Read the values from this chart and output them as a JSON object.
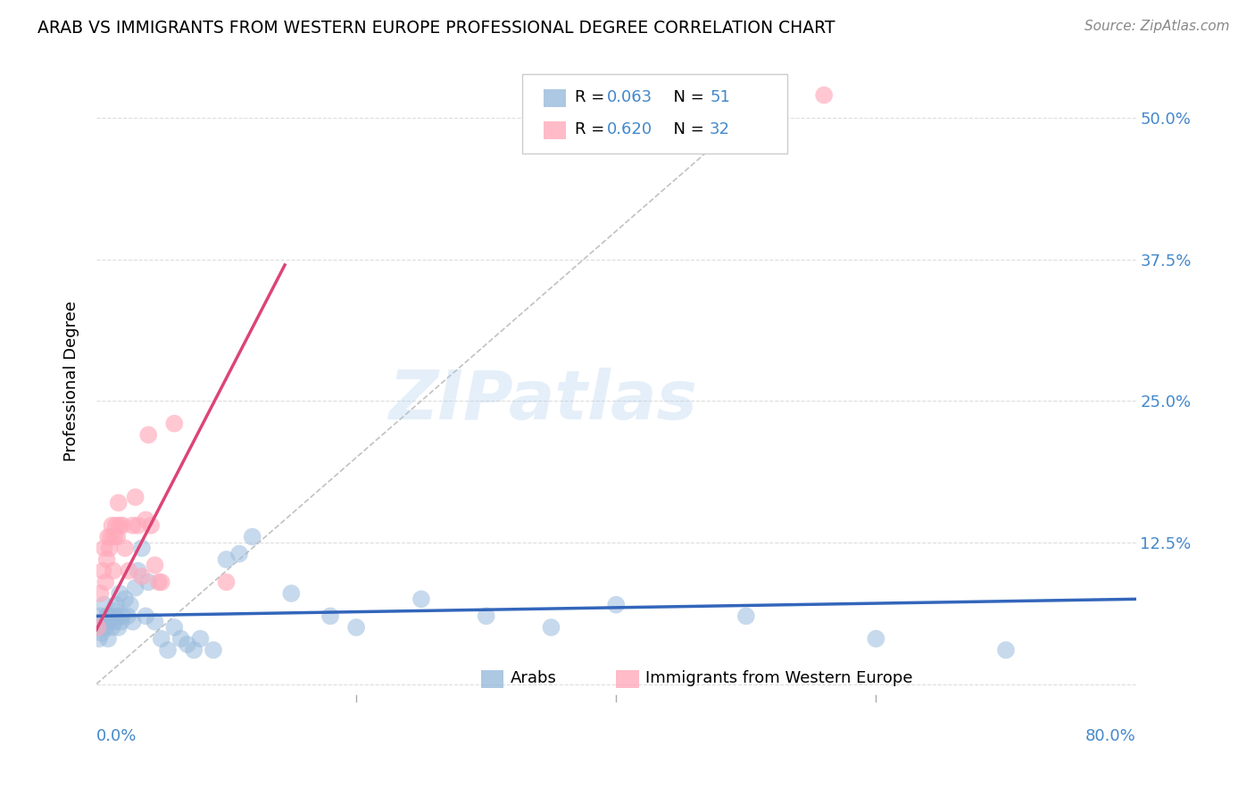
{
  "title": "ARAB VS IMMIGRANTS FROM WESTERN EUROPE PROFESSIONAL DEGREE CORRELATION CHART",
  "source": "Source: ZipAtlas.com",
  "ylabel": "Professional Degree",
  "xlim": [
    0,
    0.8
  ],
  "ylim": [
    -0.015,
    0.55
  ],
  "ytick_values": [
    0.0,
    0.125,
    0.25,
    0.375,
    0.5
  ],
  "ytick_labels": [
    "",
    "12.5%",
    "25.0%",
    "37.5%",
    "50.0%"
  ],
  "blue_color": "#99BBDD",
  "pink_color": "#FFAABB",
  "blue_line_color": "#3366BB",
  "pink_line_color": "#DD4477",
  "diagonal_color": "#BBBBBB",
  "watermark": "ZIPatlas",
  "arab_x": [
    0.001,
    0.002,
    0.003,
    0.004,
    0.005,
    0.006,
    0.007,
    0.008,
    0.009,
    0.01,
    0.011,
    0.012,
    0.013,
    0.014,
    0.015,
    0.016,
    0.017,
    0.018,
    0.019,
    0.02,
    0.022,
    0.024,
    0.026,
    0.028,
    0.03,
    0.032,
    0.035,
    0.038,
    0.04,
    0.045,
    0.05,
    0.055,
    0.06,
    0.065,
    0.07,
    0.075,
    0.08,
    0.09,
    0.1,
    0.11,
    0.12,
    0.15,
    0.18,
    0.2,
    0.25,
    0.3,
    0.35,
    0.4,
    0.5,
    0.6,
    0.7
  ],
  "arab_y": [
    0.05,
    0.04,
    0.06,
    0.045,
    0.055,
    0.07,
    0.05,
    0.06,
    0.04,
    0.055,
    0.06,
    0.05,
    0.065,
    0.055,
    0.07,
    0.06,
    0.05,
    0.08,
    0.055,
    0.06,
    0.075,
    0.06,
    0.07,
    0.055,
    0.085,
    0.1,
    0.12,
    0.06,
    0.09,
    0.055,
    0.04,
    0.03,
    0.05,
    0.04,
    0.035,
    0.03,
    0.04,
    0.03,
    0.11,
    0.115,
    0.13,
    0.08,
    0.06,
    0.05,
    0.075,
    0.06,
    0.05,
    0.07,
    0.06,
    0.04,
    0.03
  ],
  "west_x": [
    0.001,
    0.003,
    0.005,
    0.006,
    0.007,
    0.008,
    0.009,
    0.01,
    0.011,
    0.012,
    0.013,
    0.014,
    0.015,
    0.016,
    0.017,
    0.018,
    0.02,
    0.022,
    0.025,
    0.028,
    0.03,
    0.032,
    0.035,
    0.038,
    0.04,
    0.042,
    0.045,
    0.048,
    0.05,
    0.06,
    0.1,
    0.56
  ],
  "west_y": [
    0.05,
    0.08,
    0.1,
    0.12,
    0.09,
    0.11,
    0.13,
    0.12,
    0.13,
    0.14,
    0.1,
    0.13,
    0.14,
    0.13,
    0.16,
    0.14,
    0.14,
    0.12,
    0.1,
    0.14,
    0.165,
    0.14,
    0.095,
    0.145,
    0.22,
    0.14,
    0.105,
    0.09,
    0.09,
    0.23,
    0.09,
    0.52
  ],
  "arab_line": [
    0.0,
    0.8,
    0.06,
    0.075
  ],
  "west_line": [
    0.0,
    0.145,
    0.048,
    0.37
  ]
}
